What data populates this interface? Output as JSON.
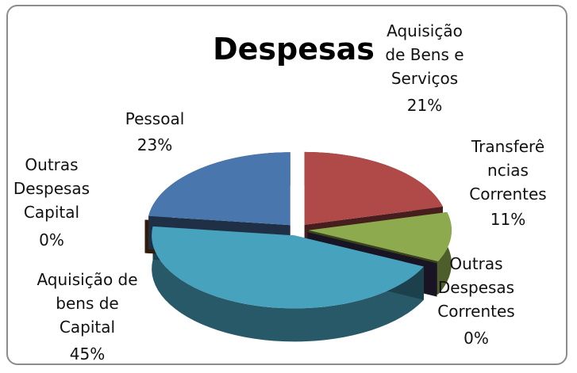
{
  "chart_data": {
    "type": "pie",
    "title": "Despesas",
    "categories": [
      "Aquisição de Bens e Serviços",
      "Transferências Correntes",
      "Outras Despesas Correntes",
      "Aquisição de bens de Capital",
      "Outras Despesas Capital",
      "Pessoal"
    ],
    "values": [
      21,
      11,
      0,
      45,
      0,
      23
    ],
    "value_labels": [
      "21%",
      "11%",
      "0%",
      "45%",
      "0%",
      "23%"
    ],
    "colors": [
      "#b04a49",
      "#8eaa4e",
      "#3d3158",
      "#47a2bd",
      "#7b4714",
      "#4a76ae"
    ]
  }
}
